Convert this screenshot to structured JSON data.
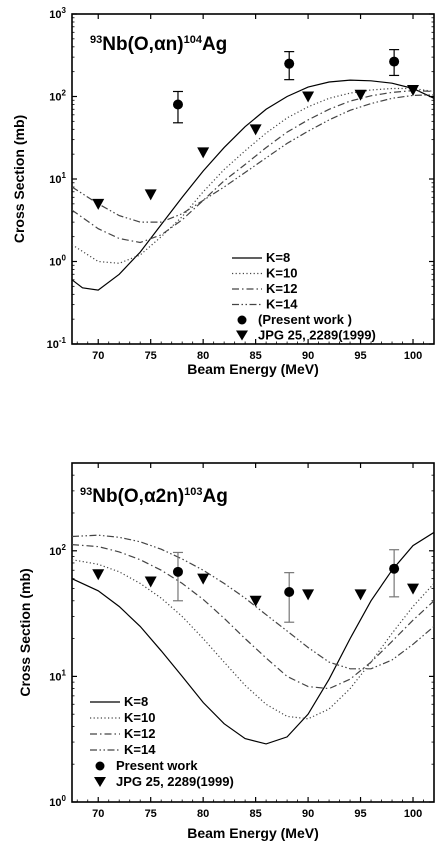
{
  "chart_data": [
    {
      "type": "line",
      "title_sup_left": "93",
      "title_main": "Nb(O,αn)",
      "title_sup_right": "104",
      "title_tail": "Ag",
      "xlabel": "Beam Energy (MeV)",
      "ylabel": "Cross Section (mb)",
      "xlim": [
        67.5,
        102
      ],
      "xticks": [
        70,
        75,
        80,
        85,
        90,
        95,
        100
      ],
      "xtick_labels": [
        "70",
        "75",
        "80",
        "85",
        "90",
        "95",
        "100"
      ],
      "ylim": [
        0.1,
        1000
      ],
      "yscale": "log",
      "yticks": [
        0.1,
        1,
        10,
        100,
        1000
      ],
      "ytick_labels": [
        {
          "base": "10",
          "exp": "-1"
        },
        {
          "base": "10",
          "exp": "0"
        },
        {
          "base": "10",
          "exp": "1"
        },
        {
          "base": "10",
          "exp": "2"
        },
        {
          "base": "10",
          "exp": "3"
        }
      ],
      "legend_position": "bottom-right",
      "series": [
        {
          "name": "K=8",
          "style": "solid",
          "x": [
            67.5,
            68.5,
            70,
            72,
            74,
            76,
            78,
            80,
            82,
            84,
            86,
            88,
            90,
            92,
            94,
            96,
            98,
            100,
            102
          ],
          "y": [
            0.6,
            0.48,
            0.45,
            0.7,
            1.3,
            2.8,
            6,
            12.5,
            24,
            43,
            70,
            100,
            130,
            150,
            158,
            155,
            145,
            125,
            95
          ]
        },
        {
          "name": "K=10",
          "style": "dotted",
          "x": [
            67.5,
            70,
            72,
            74,
            76,
            78,
            80,
            82,
            84,
            86,
            88,
            90,
            92,
            94,
            96,
            98,
            100,
            102
          ],
          "y": [
            1.6,
            1.0,
            0.95,
            1.2,
            2.0,
            3.5,
            7,
            13,
            22,
            36,
            55,
            75,
            95,
            110,
            120,
            125,
            125,
            115
          ]
        },
        {
          "name": "K=12",
          "style": "dashdot",
          "x": [
            67.5,
            70,
            72,
            74,
            76,
            78,
            80,
            82,
            84,
            86,
            88,
            90,
            92,
            94,
            96,
            98,
            100,
            102
          ],
          "y": [
            4.2,
            2.5,
            1.9,
            1.7,
            2.1,
            3.2,
            5.5,
            9.5,
            15,
            24,
            37,
            52,
            70,
            88,
            102,
            112,
            118,
            115
          ]
        },
        {
          "name": "K=14",
          "style": "dashdotdot",
          "x": [
            67.5,
            70,
            72,
            74,
            76,
            78,
            80,
            82,
            84,
            86,
            88,
            90,
            92,
            94,
            96,
            98,
            100,
            102
          ],
          "y": [
            8,
            5,
            3.6,
            3.0,
            3.0,
            3.8,
            5.5,
            8,
            12,
            18,
            27,
            38,
            52,
            68,
            82,
            95,
            103,
            105
          ]
        },
        {
          "name": "(Present work )",
          "style": "circle",
          "x": [
            77.6,
            88.2,
            98.2
          ],
          "y": [
            80,
            250,
            265
          ],
          "yerr_low": [
            48,
            160,
            180
          ],
          "yerr_high": [
            115,
            350,
            370
          ]
        },
        {
          "name": "JPG 25, 2289(1999)",
          "style": "triangle",
          "x": [
            70,
            75,
            80,
            85,
            90,
            95,
            100
          ],
          "y": [
            5,
            6.5,
            21,
            40,
            100,
            105,
            120
          ]
        }
      ]
    },
    {
      "type": "line",
      "title_sup_left": "93",
      "title_main": "Nb(O,α2n)",
      "title_sup_right": "103",
      "title_tail": "Ag",
      "xlabel": "Beam Energy (MeV)",
      "ylabel": "Cross Section (mb)",
      "xlim": [
        67.5,
        102
      ],
      "xticks": [
        70,
        75,
        80,
        85,
        90,
        95,
        100
      ],
      "xtick_labels": [
        "70",
        "75",
        "80",
        "85",
        "90",
        "95",
        "100"
      ],
      "ylim": [
        1,
        500
      ],
      "yscale": "log",
      "yticks": [
        1,
        10,
        100
      ],
      "ytick_labels": [
        {
          "base": "10",
          "exp": "0"
        },
        {
          "base": "10",
          "exp": "1"
        },
        {
          "base": "10",
          "exp": "2"
        }
      ],
      "legend_position": "bottom-left",
      "series": [
        {
          "name": "K=8",
          "style": "solid",
          "x": [
            67.5,
            70,
            72,
            74,
            76,
            78,
            80,
            82,
            84,
            86,
            88,
            90,
            92,
            94,
            96,
            98,
            100,
            102
          ],
          "y": [
            60,
            48,
            36,
            25,
            16,
            10,
            6.2,
            4.2,
            3.2,
            2.9,
            3.3,
            5.0,
            9.5,
            20,
            40,
            70,
            110,
            140
          ]
        },
        {
          "name": "K=10",
          "style": "dotted",
          "x": [
            67.5,
            70,
            72,
            74,
            76,
            78,
            80,
            82,
            84,
            86,
            88,
            90,
            92,
            94,
            96,
            98,
            100,
            102
          ],
          "y": [
            85,
            78,
            68,
            55,
            42,
            30,
            20,
            13,
            8.5,
            6.0,
            4.8,
            4.6,
            5.5,
            8,
            13,
            22,
            36,
            55
          ]
        },
        {
          "name": "K=12",
          "style": "dashdot",
          "x": [
            67.5,
            70,
            72,
            74,
            76,
            78,
            80,
            82,
            84,
            86,
            88,
            90,
            92,
            94,
            96,
            98,
            100,
            102
          ],
          "y": [
            112,
            108,
            98,
            85,
            70,
            55,
            41,
            29,
            20,
            14,
            10,
            8.3,
            8.0,
            9.5,
            13,
            19,
            28,
            40
          ]
        },
        {
          "name": "K=14",
          "style": "dashdotdot",
          "x": [
            67.5,
            70,
            72,
            74,
            76,
            78,
            80,
            82,
            84,
            86,
            88,
            90,
            92,
            94,
            96,
            98,
            100,
            102
          ],
          "y": [
            130,
            133,
            128,
            118,
            103,
            86,
            70,
            55,
            42,
            31,
            23,
            17,
            13,
            11.5,
            11.5,
            13.5,
            18,
            25
          ]
        },
        {
          "name": "Present work",
          "style": "circle",
          "x": [
            77.6,
            88.2,
            98.2
          ],
          "y": [
            68,
            47,
            72
          ],
          "yerr_low": [
            40,
            27,
            43
          ],
          "yerr_high": [
            97,
            67,
            102
          ]
        },
        {
          "name": "JPG 25, 2289(1999)",
          "style": "triangle",
          "x": [
            70,
            75,
            80,
            85,
            90,
            95,
            100
          ],
          "y": [
            65,
            57,
            60,
            40,
            45,
            45,
            50
          ]
        }
      ]
    }
  ]
}
